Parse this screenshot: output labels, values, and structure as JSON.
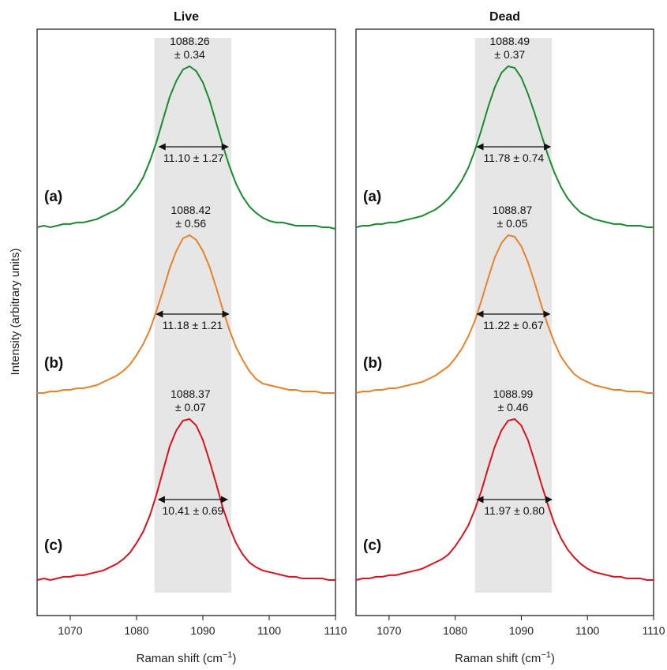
{
  "figure": {
    "ylabel": "Intensity (arbitrary units)",
    "xlabel_prefix": "Raman shift (cm",
    "xlabel_sup": "−1",
    "xlabel_suffix": ")"
  },
  "chart_data": [
    {
      "type": "line",
      "title": "Live",
      "xlim": [
        1065,
        1110
      ],
      "xticks": [
        1070,
        1080,
        1090,
        1100,
        1110
      ],
      "shaded_band": [
        1082.7,
        1094.3
      ],
      "series": [
        {
          "label": "(a)",
          "color": "#1a8a2e",
          "center": 1088.26,
          "center_text": "1088.26",
          "center_err": "± 0.34",
          "fwhm_text": "11.10 ± 1.27",
          "fwhm_range": [
            1083.4,
            1093.8
          ],
          "x": [
            1065,
            1066,
            1067,
            1068,
            1069,
            1070,
            1071,
            1072,
            1073,
            1074,
            1075,
            1076,
            1077,
            1078,
            1079,
            1080,
            1081,
            1082,
            1083,
            1084,
            1085,
            1086,
            1087,
            1088,
            1089,
            1090,
            1091,
            1092,
            1093,
            1094,
            1095,
            1096,
            1097,
            1098,
            1099,
            1100,
            1101,
            1102,
            1103,
            1104,
            1105,
            1106,
            1107,
            1108,
            1109,
            1110
          ],
          "y": [
            0.0,
            0.01,
            0.0,
            0.01,
            0.02,
            0.02,
            0.03,
            0.03,
            0.04,
            0.05,
            0.07,
            0.09,
            0.11,
            0.14,
            0.19,
            0.24,
            0.31,
            0.41,
            0.53,
            0.67,
            0.81,
            0.91,
            0.98,
            1.0,
            0.97,
            0.9,
            0.79,
            0.65,
            0.51,
            0.38,
            0.27,
            0.19,
            0.13,
            0.09,
            0.06,
            0.04,
            0.03,
            0.03,
            0.02,
            0.01,
            0.01,
            0.01,
            0.01,
            0.0,
            0.0,
            -0.01
          ]
        },
        {
          "label": "(b)",
          "color": "#e8812a",
          "center": 1088.42,
          "center_text": "1088.42",
          "center_err": "± 0.56",
          "fwhm_text": "11.18 ± 1.21",
          "fwhm_range": [
            1083.0,
            1093.9
          ],
          "x": [
            1065,
            1066,
            1067,
            1068,
            1069,
            1070,
            1071,
            1072,
            1073,
            1074,
            1075,
            1076,
            1077,
            1078,
            1079,
            1080,
            1081,
            1082,
            1083,
            1084,
            1085,
            1086,
            1087,
            1088,
            1089,
            1090,
            1091,
            1092,
            1093,
            1094,
            1095,
            1096,
            1097,
            1098,
            1099,
            1100,
            1101,
            1102,
            1103,
            1104,
            1105,
            1106,
            1107,
            1108,
            1109,
            1110
          ],
          "y": [
            0.0,
            0.0,
            0.01,
            0.01,
            0.02,
            0.02,
            0.03,
            0.03,
            0.04,
            0.05,
            0.07,
            0.09,
            0.11,
            0.14,
            0.18,
            0.24,
            0.31,
            0.4,
            0.52,
            0.65,
            0.79,
            0.9,
            0.98,
            1.0,
            0.97,
            0.9,
            0.8,
            0.67,
            0.53,
            0.4,
            0.29,
            0.21,
            0.14,
            0.09,
            0.06,
            0.05,
            0.04,
            0.03,
            0.02,
            0.02,
            0.01,
            0.01,
            0.01,
            0.0,
            0.0,
            0.0
          ]
        },
        {
          "label": "(c)",
          "color": "#d8131e",
          "center": 1088.37,
          "center_text": "1088.37",
          "center_err": "± 0.07",
          "fwhm_text": "10.41 ± 0.69",
          "fwhm_range": [
            1083.3,
            1093.7
          ],
          "x": [
            1065,
            1066,
            1067,
            1068,
            1069,
            1070,
            1071,
            1072,
            1073,
            1074,
            1075,
            1076,
            1077,
            1078,
            1079,
            1080,
            1081,
            1082,
            1083,
            1084,
            1085,
            1086,
            1087,
            1088,
            1089,
            1090,
            1091,
            1092,
            1093,
            1094,
            1095,
            1096,
            1097,
            1098,
            1099,
            1100,
            1101,
            1102,
            1103,
            1104,
            1105,
            1106,
            1107,
            1108,
            1109,
            1110
          ],
          "y": [
            0.0,
            0.01,
            0.0,
            0.01,
            0.02,
            0.02,
            0.03,
            0.03,
            0.04,
            0.05,
            0.06,
            0.08,
            0.1,
            0.13,
            0.17,
            0.23,
            0.3,
            0.4,
            0.53,
            0.68,
            0.83,
            0.93,
            0.99,
            1.0,
            0.96,
            0.87,
            0.74,
            0.6,
            0.45,
            0.33,
            0.23,
            0.16,
            0.11,
            0.08,
            0.06,
            0.05,
            0.04,
            0.03,
            0.02,
            0.02,
            0.01,
            0.01,
            0.01,
            0.01,
            0.0,
            0.0
          ]
        }
      ]
    },
    {
      "type": "line",
      "title": "Dead",
      "xlim": [
        1065,
        1110
      ],
      "xticks": [
        1070,
        1080,
        1090,
        1100,
        1110
      ],
      "shaded_band": [
        1083.0,
        1094.6
      ],
      "series": [
        {
          "label": "(a)",
          "color": "#1a8a2e",
          "center": 1088.49,
          "center_text": "1088.49",
          "center_err": "± 0.37",
          "fwhm_text": "11.78 ± 0.74",
          "fwhm_range": [
            1083.3,
            1094.4
          ],
          "x": [
            1065,
            1066,
            1067,
            1068,
            1069,
            1070,
            1071,
            1072,
            1073,
            1074,
            1075,
            1076,
            1077,
            1078,
            1079,
            1080,
            1081,
            1082,
            1083,
            1084,
            1085,
            1086,
            1087,
            1088,
            1089,
            1090,
            1091,
            1092,
            1093,
            1094,
            1095,
            1096,
            1097,
            1098,
            1099,
            1100,
            1101,
            1102,
            1103,
            1104,
            1105,
            1106,
            1107,
            1108,
            1109,
            1110
          ],
          "y": [
            0.0,
            0.01,
            0.01,
            0.02,
            0.02,
            0.03,
            0.03,
            0.04,
            0.05,
            0.06,
            0.07,
            0.09,
            0.11,
            0.14,
            0.18,
            0.23,
            0.29,
            0.37,
            0.48,
            0.61,
            0.75,
            0.87,
            0.96,
            1.0,
            0.99,
            0.93,
            0.83,
            0.71,
            0.58,
            0.45,
            0.34,
            0.25,
            0.18,
            0.13,
            0.09,
            0.07,
            0.05,
            0.04,
            0.03,
            0.02,
            0.02,
            0.01,
            0.01,
            0.01,
            0.0,
            0.0
          ]
        },
        {
          "label": "(b)",
          "color": "#e8812a",
          "center": 1088.87,
          "center_text": "1088.87",
          "center_err": "± 0.05",
          "fwhm_text": "11.22 ± 0.67",
          "fwhm_range": [
            1083.3,
            1094.3
          ],
          "x": [
            1065,
            1066,
            1067,
            1068,
            1069,
            1070,
            1071,
            1072,
            1073,
            1074,
            1075,
            1076,
            1077,
            1078,
            1079,
            1080,
            1081,
            1082,
            1083,
            1084,
            1085,
            1086,
            1087,
            1088,
            1089,
            1090,
            1091,
            1092,
            1093,
            1094,
            1095,
            1096,
            1097,
            1098,
            1099,
            1100,
            1101,
            1102,
            1103,
            1104,
            1105,
            1106,
            1107,
            1108,
            1109,
            1110
          ],
          "y": [
            0.0,
            0.01,
            0.01,
            0.02,
            0.02,
            0.03,
            0.03,
            0.04,
            0.05,
            0.06,
            0.07,
            0.09,
            0.11,
            0.14,
            0.17,
            0.22,
            0.28,
            0.36,
            0.46,
            0.59,
            0.73,
            0.86,
            0.95,
            1.0,
            0.99,
            0.93,
            0.83,
            0.7,
            0.56,
            0.43,
            0.32,
            0.23,
            0.17,
            0.12,
            0.09,
            0.07,
            0.05,
            0.04,
            0.03,
            0.02,
            0.02,
            0.01,
            0.01,
            0.01,
            0.0,
            0.0
          ]
        },
        {
          "label": "(c)",
          "color": "#d8131e",
          "center": 1088.99,
          "center_text": "1088.99",
          "center_err": "± 0.46",
          "fwhm_text": "11.97 ± 0.80",
          "fwhm_range": [
            1083.3,
            1094.6
          ],
          "x": [
            1065,
            1066,
            1067,
            1068,
            1069,
            1070,
            1071,
            1072,
            1073,
            1074,
            1075,
            1076,
            1077,
            1078,
            1079,
            1080,
            1081,
            1082,
            1083,
            1084,
            1085,
            1086,
            1087,
            1088,
            1089,
            1090,
            1091,
            1092,
            1093,
            1094,
            1095,
            1096,
            1097,
            1098,
            1099,
            1100,
            1101,
            1102,
            1103,
            1104,
            1105,
            1106,
            1107,
            1108,
            1109,
            1110
          ],
          "y": [
            0.0,
            0.01,
            0.01,
            0.02,
            0.02,
            0.03,
            0.03,
            0.04,
            0.05,
            0.06,
            0.07,
            0.09,
            0.11,
            0.13,
            0.16,
            0.21,
            0.27,
            0.34,
            0.44,
            0.56,
            0.7,
            0.83,
            0.93,
            0.99,
            1.0,
            0.96,
            0.87,
            0.74,
            0.6,
            0.47,
            0.35,
            0.26,
            0.19,
            0.14,
            0.1,
            0.07,
            0.05,
            0.04,
            0.03,
            0.02,
            0.02,
            0.01,
            0.01,
            0.01,
            0.0,
            0.0
          ]
        }
      ]
    }
  ]
}
